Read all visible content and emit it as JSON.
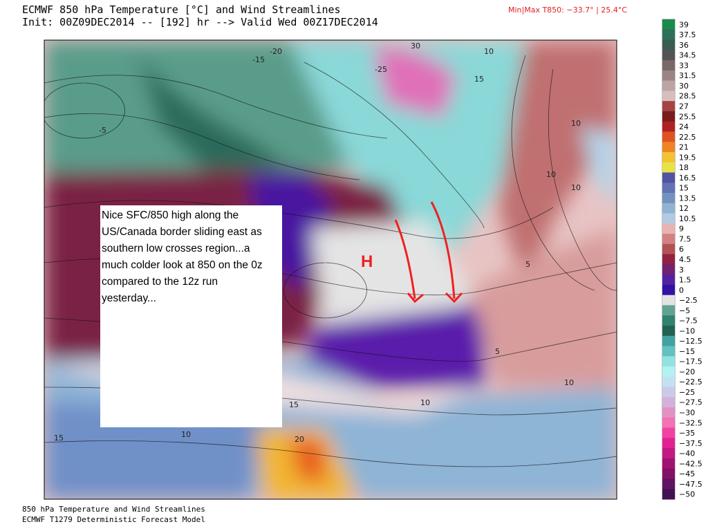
{
  "header": {
    "title": "ECMWF 850 hPa Temperature [°C] and Wind Streamlines",
    "subtitle": "Init: 00Z09DEC2014 -- [192] hr --> Valid Wed 00Z17DEC2014",
    "minmax": "Min|Max T850: −33.7° |  25.4°C"
  },
  "colorbar": {
    "labels": [
      "39",
      "37.5",
      "36",
      "34.5",
      "33",
      "31.5",
      "30",
      "28.5",
      "27",
      "25.5",
      "24",
      "22.5",
      "21",
      "19.5",
      "18",
      "16.5",
      "15",
      "13.5",
      "12",
      "10.5",
      "9",
      "7.5",
      "6",
      "4.5",
      "3",
      "1.5",
      "0",
      "−2.5",
      "−5",
      "−7.5",
      "−10",
      "−12.5",
      "−15",
      "−17.5",
      "−20",
      "−22.5",
      "−25",
      "−27.5",
      "−30",
      "−32.5",
      "−35",
      "−37.5",
      "−40",
      "−42.5",
      "−45",
      "−47.5",
      "−50"
    ],
    "colors": [
      "#1c8a4c",
      "#2d7058",
      "#3b5c52",
      "#545454",
      "#786868",
      "#9c8484",
      "#bca4a4",
      "#d6bebe",
      "#a44444",
      "#7a1c1c",
      "#b02222",
      "#e05222",
      "#f08422",
      "#f2c232",
      "#e8e244",
      "#5252a2",
      "#6272b2",
      "#7292c2",
      "#92b2d2",
      "#b2cae2",
      "#eab2b2",
      "#d28282",
      "#b25252",
      "#922242",
      "#722272",
      "#5222a2",
      "#3212a2",
      "#e2e2e2",
      "#62a292",
      "#328272",
      "#226252",
      "#42a2a2",
      "#62c2c2",
      "#92e2e2",
      "#b2f2f2",
      "#c2e2f2",
      "#cacaea",
      "#d2b2da",
      "#e292c2",
      "#f272b2",
      "#f242a2",
      "#e22292",
      "#c21a82",
      "#a21272",
      "#821262",
      "#621262",
      "#421252"
    ]
  },
  "map": {
    "labels": [
      "-20",
      "-15",
      "-5",
      "-25",
      "30",
      "10",
      "15",
      "10",
      "10",
      "10",
      "5",
      "5",
      "10",
      "10",
      "15",
      "15",
      "10",
      "20"
    ],
    "marker": "H"
  },
  "annotation": {
    "lines": [
      "Nice SFC/850 high along the",
      "US/Canada border sliding east as",
      "southern low crosses region...a",
      "much colder look at 850 on the 0z",
      "compared to the 12z run",
      "yesterday..."
    ]
  },
  "footer": {
    "line1": "850 hPa Temperature and Wind Streamlines",
    "line2": "ECMWF T1279 Deterministic Forecast Model"
  }
}
